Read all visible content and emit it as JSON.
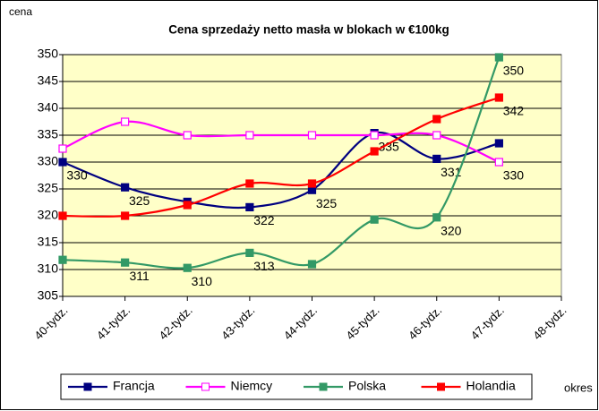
{
  "chart_data": {
    "type": "line",
    "title": "Cena sprzedaży netto masła w blokach w €100kg",
    "y_label": "cena",
    "x_label": "okres",
    "categories": [
      "40-tydz.",
      "41-tydz.",
      "42-tydz.",
      "43-tydz.",
      "44-tydz.",
      "45-tydz.",
      "46-tydz.",
      "47-tydz.",
      "48-tydz."
    ],
    "series": [
      {
        "name": "Francja",
        "color": "#000080",
        "marker": "filled",
        "values": [
          330,
          325.3,
          322.6,
          321.6,
          324.8,
          335.4,
          330.6,
          333.5,
          null
        ],
        "value_labels": [
          "330",
          "325",
          null,
          "322",
          "325",
          "335",
          "331",
          null,
          null
        ]
      },
      {
        "name": "Niemcy",
        "color": "#ff00ff",
        "marker": "hollow",
        "values": [
          332.5,
          337.5,
          335,
          335,
          335,
          335,
          335,
          330,
          null
        ],
        "value_labels": [
          null,
          null,
          null,
          null,
          null,
          null,
          null,
          "330",
          null
        ]
      },
      {
        "name": "Polska",
        "color": "#339966",
        "marker": "filled",
        "values": [
          311.8,
          311.3,
          310.3,
          313.1,
          311,
          319.3,
          319.7,
          349.5,
          null
        ],
        "value_labels": [
          null,
          "311",
          "310",
          "313",
          null,
          null,
          "320",
          "350",
          null
        ]
      },
      {
        "name": "Holandia",
        "color": "#ff0000",
        "marker": "filled",
        "values": [
          320,
          320,
          322,
          326,
          326,
          332,
          338,
          342,
          null
        ],
        "value_labels": [
          null,
          null,
          null,
          null,
          null,
          null,
          null,
          "342",
          null
        ]
      }
    ],
    "ylim": [
      305,
      350
    ],
    "yticks": [
      305,
      310,
      315,
      320,
      325,
      330,
      335,
      340,
      345,
      350
    ],
    "grid": true,
    "legend": "bottom",
    "smooth": true,
    "plot_background": "#ffffc8"
  }
}
